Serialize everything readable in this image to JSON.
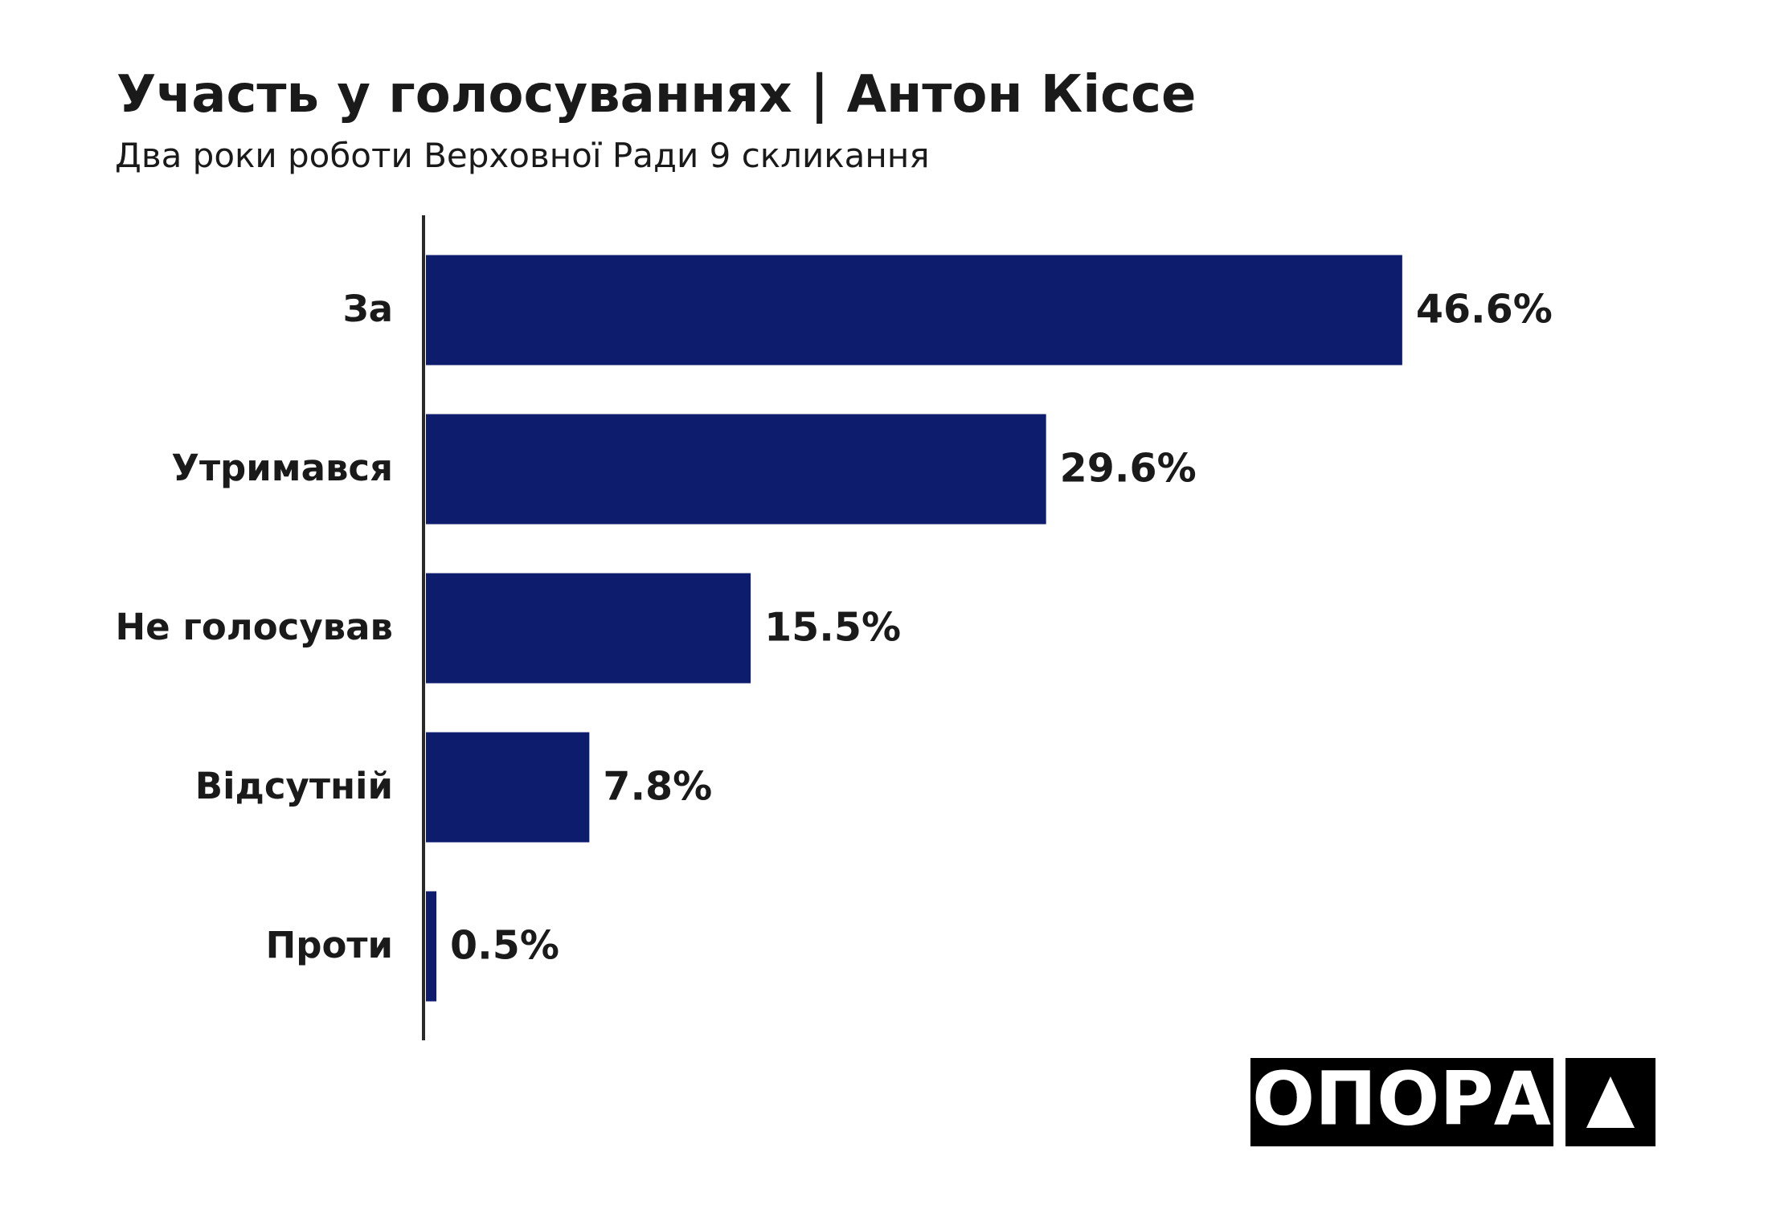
{
  "chart_data": {
    "type": "bar",
    "orientation": "horizontal",
    "title": "Участь у голосуваннях | Антон Кіссе",
    "subtitle": "Два роки роботи Верховної Ради 9 скликання",
    "categories": [
      "За",
      "Утримався",
      "Не голосував",
      "Відсутній",
      "Проти"
    ],
    "values": [
      46.6,
      29.6,
      15.5,
      7.8,
      0.5
    ],
    "value_labels": [
      "46.6%",
      "29.6%",
      "15.5%",
      "7.8%",
      "0.5%"
    ],
    "color": "#0e1c6e"
  },
  "logo": "ОПОРА"
}
